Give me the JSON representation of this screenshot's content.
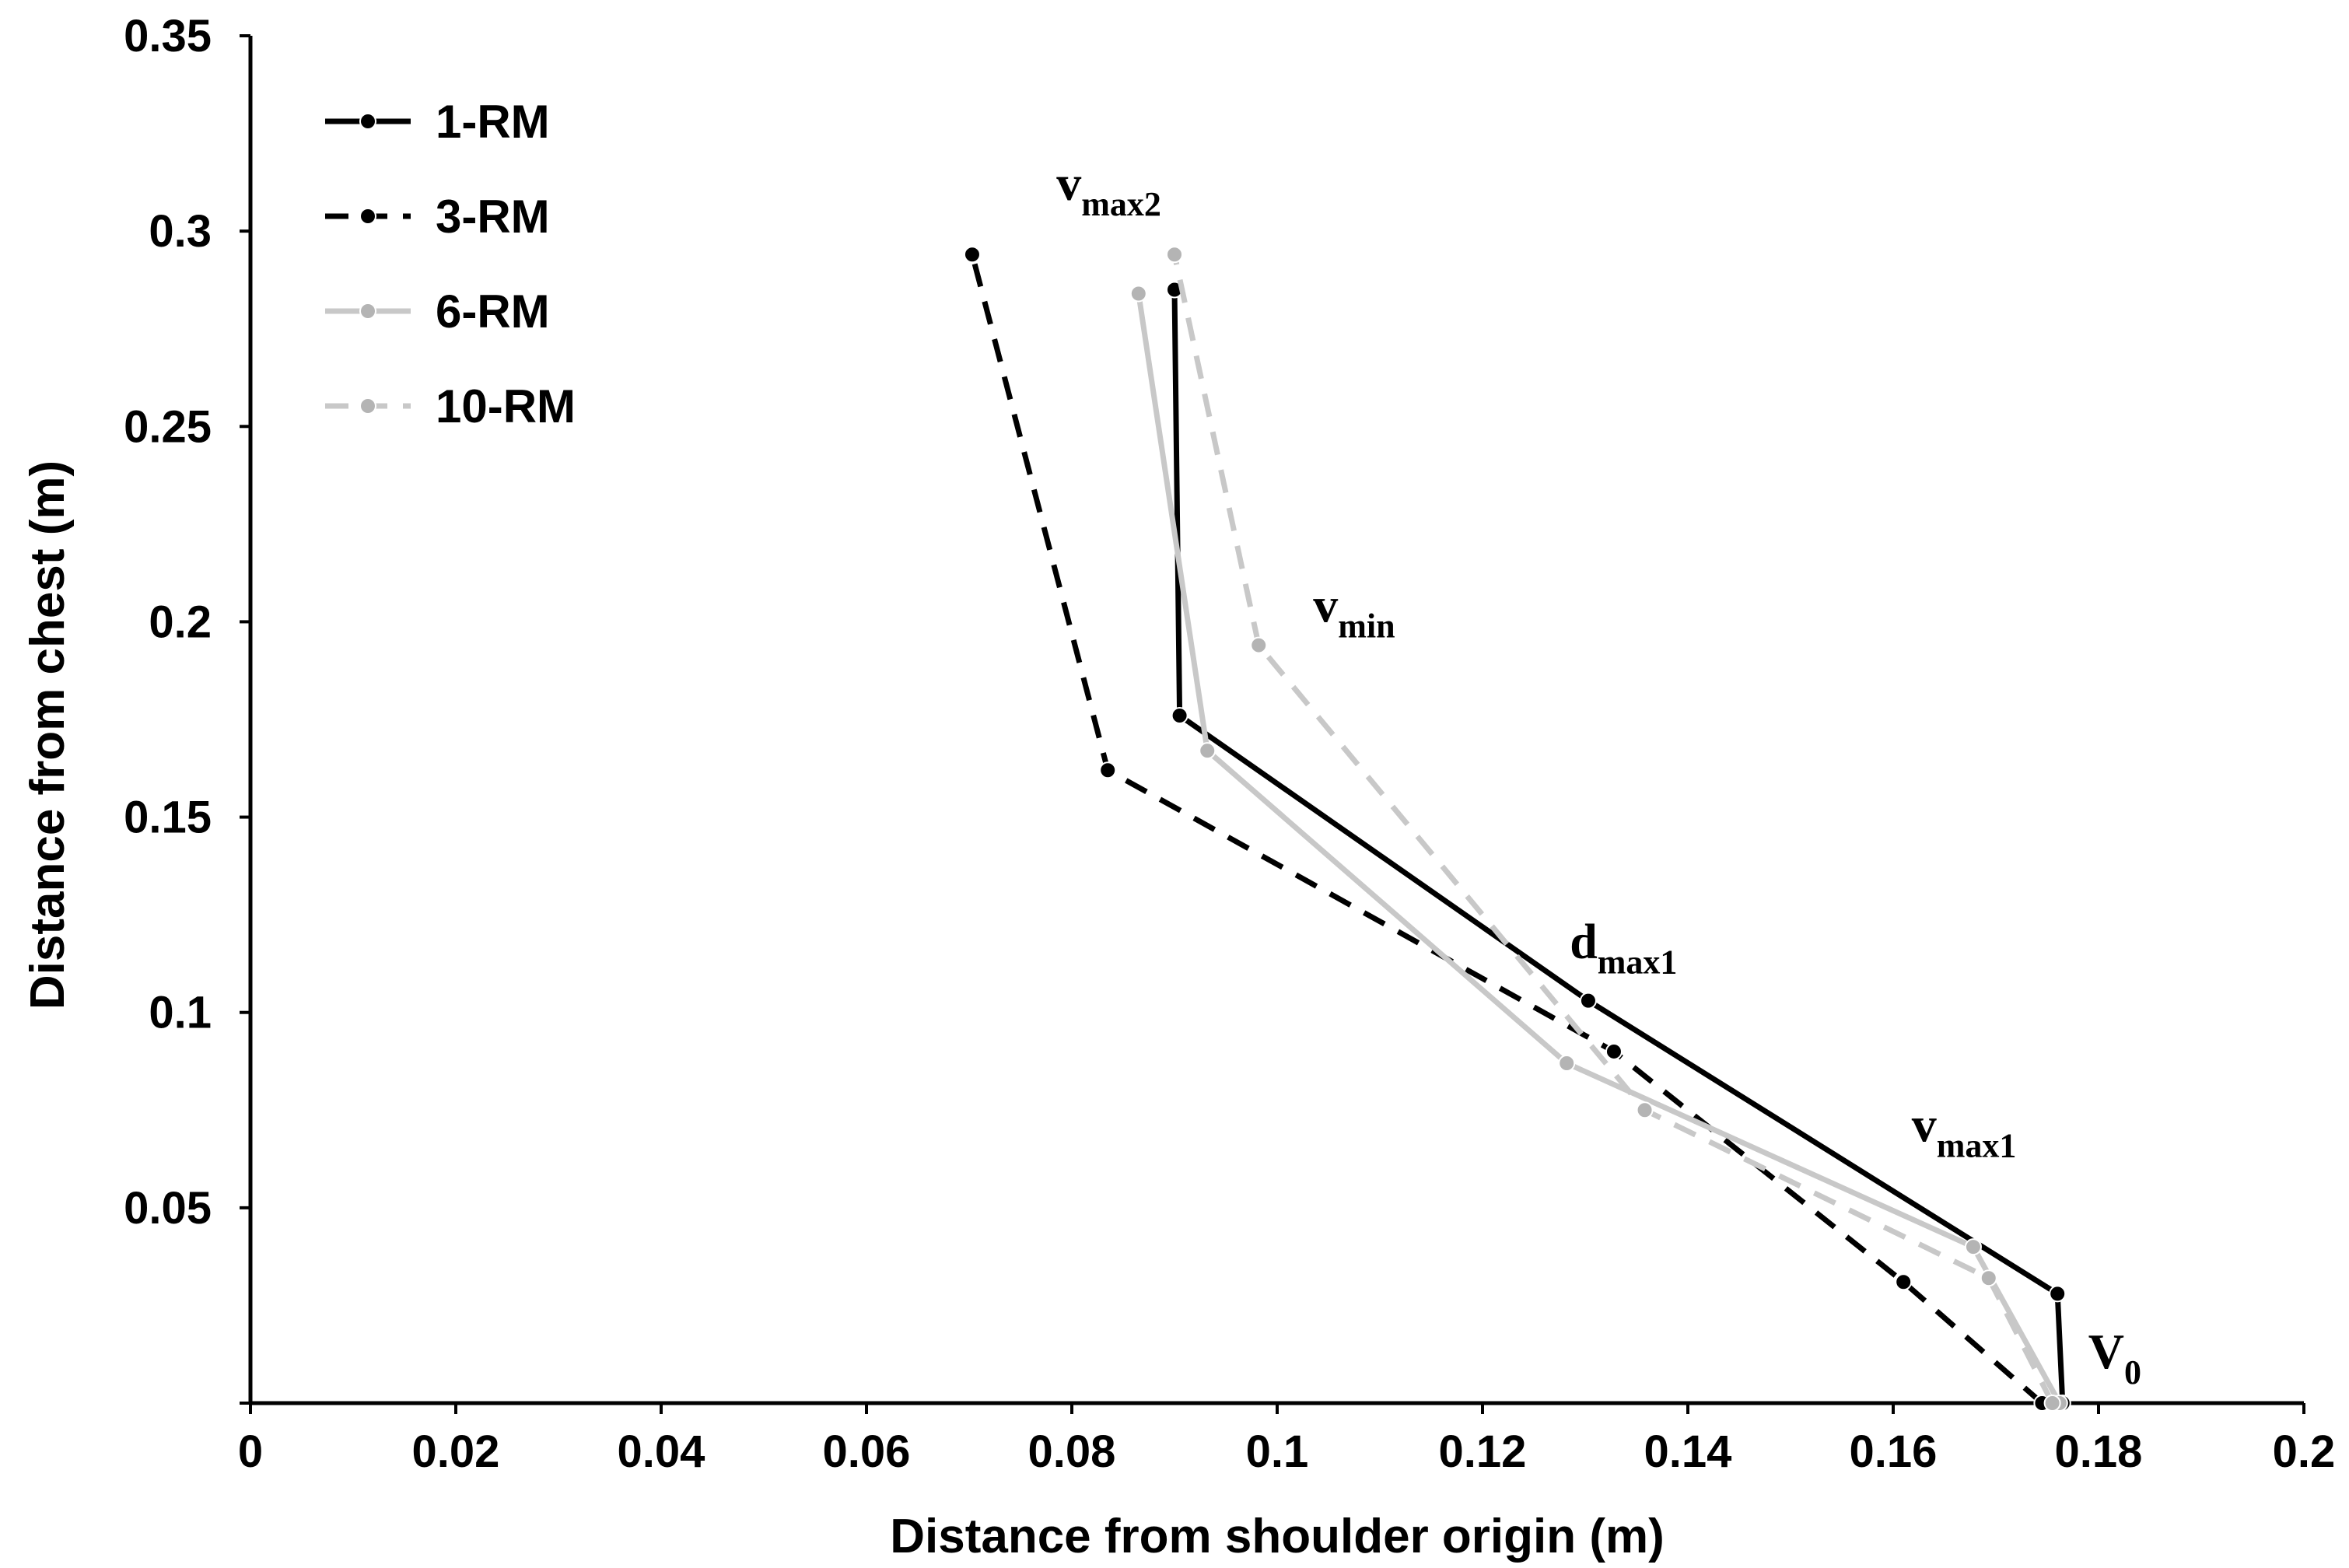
{
  "chart_data": {
    "type": "line",
    "title": "",
    "xlabel": "Distance from shoulder origin (m)",
    "ylabel": "Distance from chest (m)",
    "xlim": [
      0,
      0.2
    ],
    "ylim": [
      0,
      0.35
    ],
    "xticks": [
      0,
      0.02,
      0.04,
      0.06,
      0.08,
      0.1,
      0.12,
      0.14,
      0.16,
      0.18,
      0.2
    ],
    "xtick_labels": [
      "0",
      "0.02",
      "0.04",
      "0.06",
      "0.08",
      "0.1",
      "0.12",
      "0.14",
      "0.16",
      "0.18",
      "0.2"
    ],
    "yticks": [
      0.05,
      0.1,
      0.15,
      0.2,
      0.25,
      0.3,
      0.35
    ],
    "ytick_labels": [
      "0.05",
      "0.1",
      "0.15",
      "0.2",
      "0.25",
      "0.3",
      "0.35"
    ],
    "grid": false,
    "legend_position": "top-left",
    "series": [
      {
        "name": "1-RM",
        "color": "#000000",
        "dash": "solid",
        "points": [
          [
            0.1765,
            0.0
          ],
          [
            0.176,
            0.028
          ],
          [
            0.1303,
            0.103
          ],
          [
            0.0905,
            0.176
          ],
          [
            0.09,
            0.285
          ]
        ]
      },
      {
        "name": "3-RM",
        "color": "#000000",
        "dash": "dashed",
        "points": [
          [
            0.1745,
            0.0
          ],
          [
            0.161,
            0.031
          ],
          [
            0.1328,
            0.09
          ],
          [
            0.0835,
            0.162
          ],
          [
            0.0703,
            0.294
          ]
        ]
      },
      {
        "name": "6-RM",
        "color": "#c8c8c8",
        "dash": "solid",
        "points": [
          [
            0.1762,
            0.0
          ],
          [
            0.1678,
            0.04
          ],
          [
            0.1282,
            0.087
          ],
          [
            0.0932,
            0.167
          ],
          [
            0.0865,
            0.284
          ]
        ]
      },
      {
        "name": "10-RM",
        "color": "#c8c8c8",
        "dash": "dashed",
        "points": [
          [
            0.1755,
            0.0
          ],
          [
            0.1693,
            0.032
          ],
          [
            0.1358,
            0.075
          ],
          [
            0.0982,
            0.194
          ],
          [
            0.09,
            0.294
          ]
        ]
      }
    ],
    "annotations": [
      {
        "id": "vmax2",
        "main": "v",
        "sub": "max2",
        "x": 0.0785,
        "y": 0.308
      },
      {
        "id": "vmin",
        "main": "v",
        "sub": "min",
        "x": 0.1035,
        "y": 0.2
      },
      {
        "id": "dmax1",
        "main": "d",
        "sub": "max1",
        "x": 0.1285,
        "y": 0.114
      },
      {
        "id": "vmax1",
        "main": "v",
        "sub": "max1",
        "x": 0.1618,
        "y": 0.067
      },
      {
        "id": "v0",
        "main": "V",
        "sub": "0",
        "x": 0.179,
        "y": 0.009
      }
    ]
  }
}
